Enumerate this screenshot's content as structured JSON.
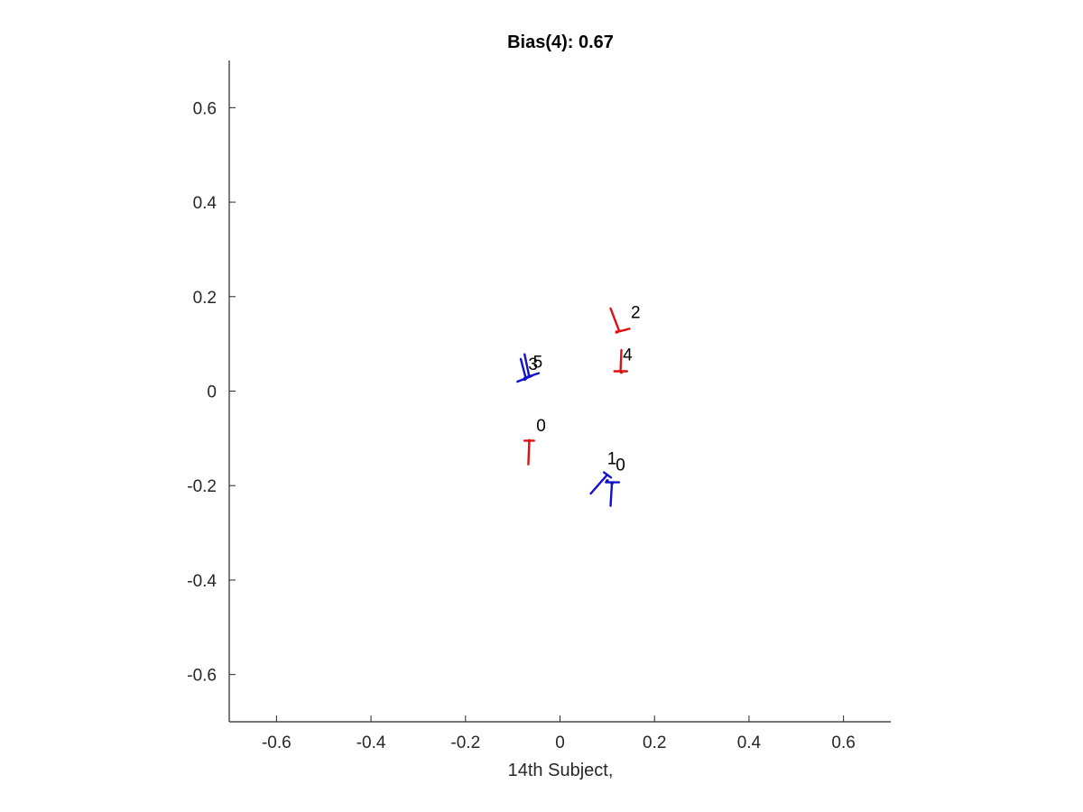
{
  "chart_data": {
    "type": "scatter",
    "title": "Bias(4): 0.67",
    "xlabel": "14th Subject,",
    "ylabel": "",
    "xlim": [
      -0.7,
      0.7
    ],
    "ylim": [
      -0.7,
      0.7
    ],
    "xticks": [
      -0.6,
      -0.4,
      -0.2,
      0,
      0.2,
      0.4,
      0.6
    ],
    "yticks": [
      -0.6,
      -0.4,
      -0.2,
      0,
      0.2,
      0.4,
      0.6
    ],
    "xtick_labels": [
      "-0.6",
      "-0.4",
      "-0.2",
      "0",
      "0.2",
      "0.4",
      "0.6"
    ],
    "ytick_labels": [
      "-0.6",
      "-0.4",
      "-0.2",
      "0",
      "0.2",
      "0.4",
      "0.6"
    ],
    "grid": false,
    "box": "left-bottom",
    "markers": [
      {
        "label": "0",
        "color": "#dd1111",
        "x": -0.065,
        "y": -0.105,
        "label_x": -0.04,
        "label_y": -0.085,
        "segments": [
          [
            -0.075,
            -0.105,
            -0.055,
            -0.105
          ],
          [
            -0.065,
            -0.105,
            -0.067,
            -0.155
          ]
        ]
      },
      {
        "label": "2",
        "color": "#dd1111",
        "x": 0.12,
        "y": 0.125,
        "label_x": 0.16,
        "label_y": 0.155,
        "segments": [
          [
            0.12,
            0.125,
            0.147,
            0.132
          ],
          [
            0.125,
            0.128,
            0.107,
            0.175
          ]
        ]
      },
      {
        "label": "4",
        "color": "#dd1111",
        "x": 0.13,
        "y": 0.04,
        "label_x": 0.143,
        "label_y": 0.065,
        "segments": [
          [
            0.115,
            0.042,
            0.142,
            0.042
          ],
          [
            0.128,
            0.042,
            0.13,
            0.087
          ]
        ]
      },
      {
        "label": "1",
        "color": "#1111cc",
        "x": 0.1,
        "y": -0.19,
        "label_x": 0.11,
        "label_y": -0.155,
        "segments": [
          [
            0.093,
            -0.172,
            0.108,
            -0.183
          ],
          [
            0.1,
            -0.177,
            0.065,
            -0.217
          ]
        ]
      },
      {
        "label": "0",
        "color": "#1111cc",
        "x": 0.11,
        "y": -0.195,
        "label_x": 0.128,
        "label_y": -0.168,
        "segments": [
          [
            0.097,
            -0.193,
            0.125,
            -0.193
          ],
          [
            0.11,
            -0.193,
            0.107,
            -0.243
          ]
        ]
      },
      {
        "label": "3",
        "color": "#1111cc",
        "x": -0.075,
        "y": 0.025,
        "label_x": -0.057,
        "label_y": 0.045,
        "segments": [
          [
            -0.09,
            0.02,
            -0.06,
            0.032
          ],
          [
            -0.072,
            0.026,
            -0.083,
            0.068
          ]
        ]
      },
      {
        "label": "5",
        "color": "#1111cc",
        "x": -0.065,
        "y": 0.032,
        "label_x": -0.047,
        "label_y": 0.05,
        "segments": [
          [
            -0.075,
            0.028,
            -0.045,
            0.038
          ],
          [
            -0.065,
            0.03,
            -0.075,
            0.078
          ]
        ]
      }
    ]
  }
}
